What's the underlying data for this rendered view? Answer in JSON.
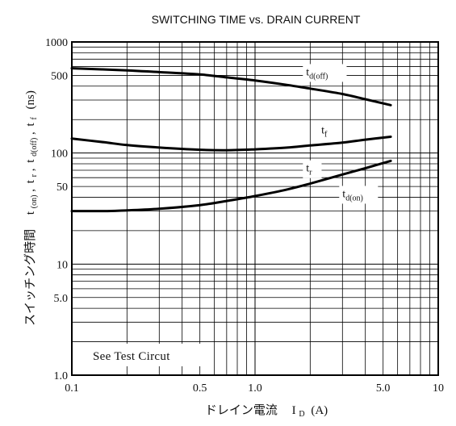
{
  "chart_data": {
    "type": "line",
    "title": "SWITCHING TIME vs. DRAIN CURRENT",
    "xlabel": "ドレイン電流",
    "xlabel_symbol": "I",
    "xlabel_sub": "D",
    "xlabel_unit": "(A)",
    "ylabel": "スイッチング時間",
    "ylabel_symbols": {
      "t_on": "t",
      "t_on_sub": "(on)",
      "t_r": "t",
      "t_r_sub": "r",
      "t_doff": "t",
      "t_doff_sub": "d(off)",
      "t_f": "t",
      "t_f_sub": "f",
      "unit": "(ns)",
      "sep": ","
    },
    "x_scale": "log",
    "y_scale": "log",
    "xlim": [
      0.1,
      10
    ],
    "ylim": [
      1,
      1000
    ],
    "x_ticks": [
      {
        "value": 0.1,
        "label": "0.1"
      },
      {
        "value": 0.5,
        "label": "0.5"
      },
      {
        "value": 1,
        "label": "1.0"
      },
      {
        "value": 5,
        "label": "5.0"
      },
      {
        "value": 10,
        "label": "10"
      }
    ],
    "y_ticks": [
      {
        "value": 1,
        "label": "1.0"
      },
      {
        "value": 5,
        "label": "5.0"
      },
      {
        "value": 10,
        "label": "10"
      },
      {
        "value": 50,
        "label": "50"
      },
      {
        "value": 100,
        "label": "100"
      },
      {
        "value": 500,
        "label": "500"
      },
      {
        "value": 1000,
        "label": "1000"
      }
    ],
    "grid": true,
    "annotation": "See Test Circut",
    "annotation_position": "bottom-left",
    "series": [
      {
        "name": "t",
        "sub": "d(off)",
        "x": [
          0.1,
          0.2,
          0.3,
          0.5,
          0.7,
          1.0,
          1.5,
          2.0,
          3.0,
          4.0,
          5.5
        ],
        "values": [
          580,
          555,
          535,
          510,
          480,
          450,
          410,
          380,
          340,
          305,
          270
        ]
      },
      {
        "name": "t",
        "sub": "f",
        "x": [
          0.1,
          0.15,
          0.2,
          0.3,
          0.5,
          0.7,
          1.0,
          1.5,
          2.0,
          3.0,
          4.0,
          5.5
        ],
        "values": [
          135,
          125,
          118,
          112,
          107,
          106,
          108,
          112,
          117,
          124,
          132,
          140
        ]
      },
      {
        "name": "t",
        "sub": "r",
        "x": [
          0.1,
          0.15,
          0.2,
          0.3,
          0.5,
          0.7,
          1.0,
          1.5,
          2.0,
          3.0,
          4.0,
          5.5
        ],
        "values": [
          30,
          30,
          30.5,
          31.5,
          34,
          37,
          41,
          47,
          53,
          64,
          73,
          85
        ]
      }
    ],
    "series_labels": [
      {
        "name": "t",
        "sub": "d(off)",
        "x": 1.9,
        "y": 500
      },
      {
        "name": "t",
        "sub": "f",
        "x": 2.3,
        "y": 150
      },
      {
        "name": "t",
        "sub": "r",
        "x": 1.9,
        "y": 68
      },
      {
        "name": "t",
        "sub": "d(on)",
        "x": 3.0,
        "y": 40
      }
    ]
  }
}
